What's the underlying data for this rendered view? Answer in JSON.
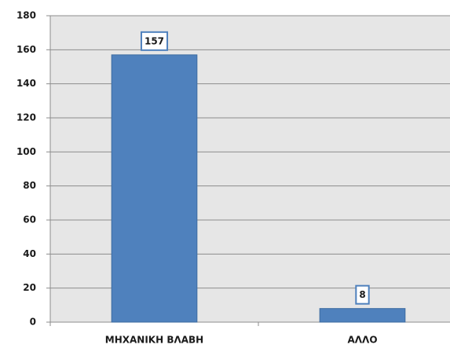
{
  "chart_data": {
    "type": "bar",
    "categories": [
      "ΜΗΧΑΝΙΚΗ ΒΛΑΒΗ",
      "ΑΛΛΟ"
    ],
    "values": [
      157,
      8
    ],
    "color": "#4f81bd",
    "ylim": [
      0,
      180
    ],
    "yticks": [
      0,
      20,
      40,
      60,
      80,
      100,
      120,
      140,
      160,
      180
    ],
    "grid": true
  }
}
